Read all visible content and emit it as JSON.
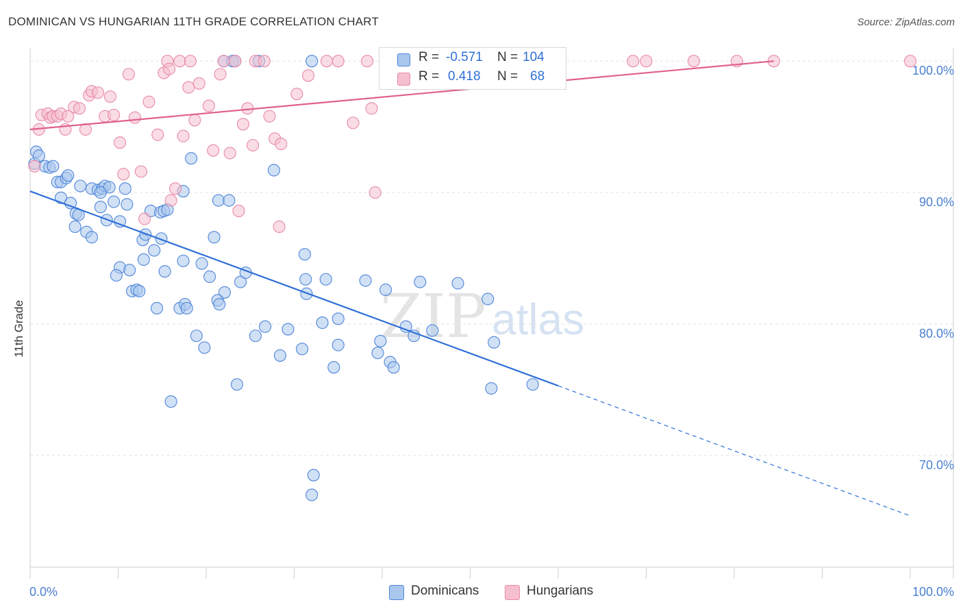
{
  "header": {
    "title": "DOMINICAN VS HUNGARIAN 11TH GRADE CORRELATION CHART",
    "source": "Source: ZipAtlas.com"
  },
  "watermark": {
    "zip": "ZIP",
    "atlas": "atlas"
  },
  "colors": {
    "blue_fill": "#a9c6ec",
    "blue_stroke": "#4f86d9",
    "blue_line": "#2f6fd6",
    "pink_fill": "#f6bfd0",
    "pink_stroke": "#e78aa7",
    "pink_line": "#e0608a",
    "axis_text": "#4a7fd1",
    "grid": "#e2e2e2"
  },
  "legend_top": {
    "rows": [
      {
        "r_label": "R =",
        "r_value": "-0.571",
        "n_label": "N =",
        "n_value": "104"
      },
      {
        "r_label": "R =",
        "r_value": "0.418",
        "n_label": "N =",
        "n_value": "68"
      }
    ]
  },
  "legend_bottom": {
    "items": [
      "Dominicans",
      "Hungarians"
    ]
  },
  "chart_data": {
    "type": "scatter",
    "title": "DOMINICAN VS HUNGARIAN 11TH GRADE CORRELATION CHART",
    "ylabel": "11th Grade",
    "xlabel": "",
    "xlim": [
      0,
      100
    ],
    "ylim": [
      61.5,
      101
    ],
    "x_tick_labels": [
      "0.0%",
      "100.0%"
    ],
    "y_ticks": [
      100,
      90,
      80,
      70
    ],
    "y_tick_labels": [
      "100.0%",
      "90.0%",
      "80.0%",
      "70.0%"
    ],
    "grid": true,
    "series": [
      {
        "name": "Dominicans",
        "r": -0.571,
        "n": 104,
        "trend": {
          "x0": 0,
          "y0": 90.1,
          "x1": 60,
          "y1": 75.3,
          "dashed_to_x": 100,
          "dashed_to_y": 65.4
        },
        "points": [
          [
            0.5,
            92.2
          ],
          [
            0.7,
            93.1
          ],
          [
            1,
            92.8
          ],
          [
            1.7,
            92
          ],
          [
            2.2,
            91.9
          ],
          [
            2.6,
            92
          ],
          [
            3.1,
            90.8
          ],
          [
            3.5,
            90.8
          ],
          [
            4.1,
            91.1
          ],
          [
            4.3,
            91.3
          ],
          [
            3.5,
            89.6
          ],
          [
            4.6,
            89.2
          ],
          [
            5.2,
            88.4
          ],
          [
            5.5,
            88.3
          ],
          [
            5.1,
            87.4
          ],
          [
            6.4,
            87
          ],
          [
            7.0,
            86.6
          ],
          [
            5.7,
            90.5
          ],
          [
            7.0,
            90.3
          ],
          [
            7.7,
            90.2
          ],
          [
            8.2,
            90.3
          ],
          [
            8.5,
            90.5
          ],
          [
            9.0,
            90.4
          ],
          [
            10.8,
            90.3
          ],
          [
            8.0,
            90.0
          ],
          [
            8.0,
            88.9
          ],
          [
            8.7,
            87.9
          ],
          [
            9.5,
            89.3
          ],
          [
            10.2,
            87.8
          ],
          [
            11.0,
            89.1
          ],
          [
            13.7,
            88.6
          ],
          [
            14.8,
            88.5
          ],
          [
            15.2,
            88.6
          ],
          [
            15.6,
            88.7
          ],
          [
            12.8,
            86.4
          ],
          [
            13.1,
            86.8
          ],
          [
            14.1,
            85.6
          ],
          [
            14.9,
            86.5
          ],
          [
            17.4,
            90.1
          ],
          [
            18.3,
            92.6
          ],
          [
            21.4,
            89.4
          ],
          [
            22.6,
            89.4
          ],
          [
            20.9,
            86.6
          ],
          [
            27.7,
            91.7
          ],
          [
            31.2,
            85.3
          ],
          [
            10.2,
            84.3
          ],
          [
            9.8,
            83.7
          ],
          [
            11.3,
            84.1
          ],
          [
            11.6,
            82.5
          ],
          [
            12.1,
            82.6
          ],
          [
            12.4,
            82.5
          ],
          [
            12.9,
            84.9
          ],
          [
            15.3,
            84.0
          ],
          [
            17.4,
            84.8
          ],
          [
            19.5,
            84.6
          ],
          [
            20.4,
            83.6
          ],
          [
            22.1,
            82.4
          ],
          [
            23.9,
            83.2
          ],
          [
            24.5,
            83.9
          ],
          [
            21.3,
            81.8
          ],
          [
            21.5,
            81.5
          ],
          [
            14.4,
            81.2
          ],
          [
            17.0,
            81.2
          ],
          [
            17.6,
            81.5
          ],
          [
            17.8,
            81.2
          ],
          [
            18.9,
            79.1
          ],
          [
            19.8,
            78.2
          ],
          [
            25.6,
            79.1
          ],
          [
            26.7,
            79.8
          ],
          [
            28.4,
            77.6
          ],
          [
            29.3,
            79.6
          ],
          [
            30.9,
            78.1
          ],
          [
            31.4,
            82.3
          ],
          [
            31.3,
            83.4
          ],
          [
            33.6,
            83.4
          ],
          [
            33.2,
            80.1
          ],
          [
            35.0,
            80.4
          ],
          [
            35.0,
            78.4
          ],
          [
            34.5,
            76.7
          ],
          [
            38.1,
            83.3
          ],
          [
            40.4,
            82.6
          ],
          [
            39.5,
            77.8
          ],
          [
            39.8,
            78.7
          ],
          [
            40.9,
            77.1
          ],
          [
            41.3,
            76.7
          ],
          [
            42.7,
            79.8
          ],
          [
            43.6,
            79.1
          ],
          [
            44.3,
            83.2
          ],
          [
            45.7,
            79.5
          ],
          [
            48.6,
            83.1
          ],
          [
            52.0,
            81.9
          ],
          [
            52.7,
            78.6
          ],
          [
            52.4,
            75.1
          ],
          [
            57.1,
            75.4
          ],
          [
            23.5,
            75.4
          ],
          [
            16.0,
            74.1
          ],
          [
            32.2,
            68.5
          ],
          [
            32.0,
            67
          ],
          [
            22.0,
            100
          ],
          [
            23.0,
            100
          ],
          [
            23.3,
            100
          ],
          [
            26.0,
            100
          ],
          [
            32.0,
            100
          ],
          [
            43.2,
            100
          ]
        ]
      },
      {
        "name": "Hungarians",
        "r": 0.418,
        "n": 68,
        "trend": {
          "x0": 0,
          "y0": 94.8,
          "x1": 84.5,
          "y1": 100.0
        },
        "points": [
          [
            0.5,
            92.0
          ],
          [
            1.0,
            94.8
          ],
          [
            1.3,
            95.9
          ],
          [
            2.0,
            96.0
          ],
          [
            2.3,
            95.7
          ],
          [
            2.6,
            95.8
          ],
          [
            3.1,
            95.8
          ],
          [
            3.5,
            96.0
          ],
          [
            4.0,
            94.8
          ],
          [
            4.3,
            95.8
          ],
          [
            5.0,
            96.5
          ],
          [
            5.6,
            96.4
          ],
          [
            6.3,
            94.8
          ],
          [
            6.7,
            97.4
          ],
          [
            7.0,
            97.7
          ],
          [
            7.7,
            97.6
          ],
          [
            8.5,
            95.8
          ],
          [
            9.1,
            97.3
          ],
          [
            9.5,
            95.9
          ],
          [
            10.2,
            93.8
          ],
          [
            10.6,
            91.4
          ],
          [
            11.2,
            99.0
          ],
          [
            11.9,
            95.7
          ],
          [
            12.6,
            91.6
          ],
          [
            13.0,
            88.0
          ],
          [
            13.5,
            96.9
          ],
          [
            14.5,
            94.4
          ],
          [
            15.2,
            99.1
          ],
          [
            15.6,
            100.0
          ],
          [
            15.8,
            99.4
          ],
          [
            16.0,
            89.4
          ],
          [
            16.5,
            90.3
          ],
          [
            17.0,
            100
          ],
          [
            17.4,
            94.3
          ],
          [
            18.0,
            98.0
          ],
          [
            18.2,
            100
          ],
          [
            18.7,
            95.5
          ],
          [
            19.2,
            98.3
          ],
          [
            20.3,
            96.6
          ],
          [
            20.8,
            93.2
          ],
          [
            21.6,
            99.0
          ],
          [
            22.0,
            100
          ],
          [
            22.7,
            93.0
          ],
          [
            23.3,
            100
          ],
          [
            23.7,
            88.6
          ],
          [
            24.2,
            95.2
          ],
          [
            24.7,
            96.4
          ],
          [
            25.3,
            93.6
          ],
          [
            25.6,
            100
          ],
          [
            26.6,
            100
          ],
          [
            27.2,
            95.8
          ],
          [
            27.8,
            94.1
          ],
          [
            28.3,
            87.4
          ],
          [
            28.5,
            93.7
          ],
          [
            30.3,
            97.5
          ],
          [
            31.6,
            98.9
          ],
          [
            33.7,
            100
          ],
          [
            35.0,
            100
          ],
          [
            36.7,
            95.3
          ],
          [
            38.3,
            100
          ],
          [
            38.8,
            96.4
          ],
          [
            39.2,
            90.0
          ],
          [
            68.5,
            100
          ],
          [
            70.0,
            100
          ],
          [
            75.4,
            100
          ],
          [
            80.3,
            100
          ],
          [
            84.5,
            100
          ],
          [
            100.0,
            100
          ]
        ]
      }
    ]
  }
}
